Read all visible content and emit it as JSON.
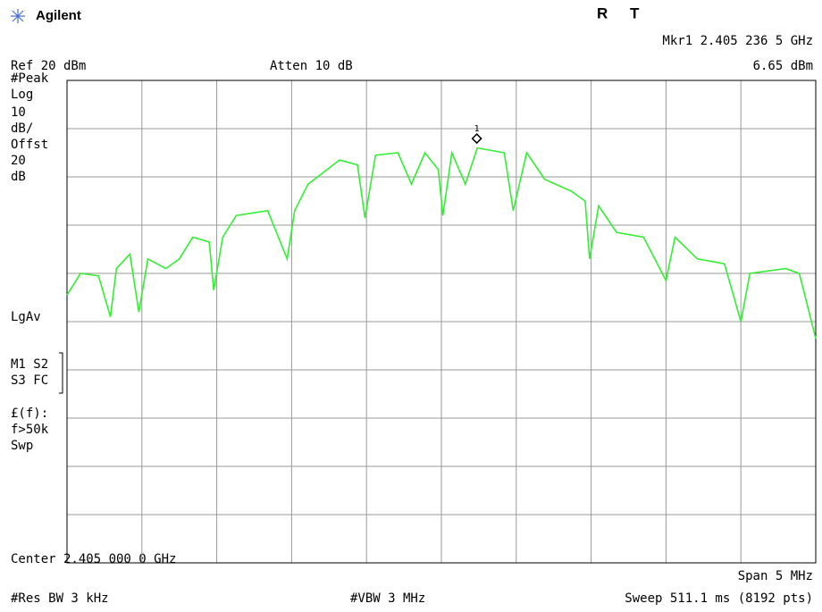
{
  "header": {
    "brand": "Agilent",
    "status_r": "R",
    "status_t": "T",
    "marker_readout": "Mkr1  2.405 236 5 GHz",
    "ref_level": "Ref 20 dBm",
    "attenuation": "Atten 10 dB",
    "marker_amplitude": "6.65 dBm"
  },
  "side_panel": [
    "#Peak",
    "Log",
    "10",
    "dB/",
    "Offst",
    "20",
    "dB",
    "LgAv",
    "M1  S2",
    "S3  FC",
    "£(f):",
    "f>50k",
    "Swp"
  ],
  "footer": {
    "center": "Center 2.405 000 0 GHz",
    "span": "Span 5 MHz",
    "rbw": "#Res BW 3 kHz",
    "vbw": "#VBW 3 MHz",
    "sweep": "Sweep 511.1 ms (8192 pts)"
  },
  "chart_data": {
    "type": "line",
    "color": "#33ee33",
    "grid": true,
    "xlim": [
      2.4025,
      2.4075
    ],
    "xticks": [
      2.4025,
      2.403,
      2.4035,
      2.404,
      2.4045,
      2.405,
      2.4055,
      2.406,
      2.4065,
      2.407,
      2.4075
    ],
    "ylim": [
      -80,
      20
    ],
    "yticks": [
      20,
      10,
      0,
      -10,
      -20,
      -30,
      -40,
      -50,
      -60,
      -70,
      -80
    ],
    "x": [
      2.4025,
      2.40259,
      2.40271,
      2.40279,
      2.40283,
      2.40292,
      2.40298,
      2.40304,
      2.40316,
      2.40325,
      2.40334,
      2.40345,
      2.40348,
      2.40354,
      2.40363,
      2.40384,
      2.40397,
      2.40402,
      2.40411,
      2.40432,
      2.40444,
      2.40449,
      2.40456,
      2.40471,
      2.4048,
      2.40489,
      2.40498,
      2.40501,
      2.40507,
      2.40516,
      2.40524,
      2.40542,
      2.40548,
      2.40557,
      2.40569,
      2.40587,
      2.40596,
      2.40599,
      2.40605,
      2.40617,
      2.40635,
      2.4065,
      2.40656,
      2.40671,
      2.40689,
      2.407,
      2.40706,
      2.4073,
      2.40739,
      2.4075
    ],
    "values": [
      -24.5,
      -20,
      -20.5,
      -29,
      -19,
      -16,
      -28,
      -17,
      -19,
      -17,
      -12.5,
      -13.5,
      -23.5,
      -12.5,
      -8,
      -7,
      -17,
      -7,
      -1.5,
      3.5,
      2.5,
      -8.5,
      4.5,
      5,
      -1.5,
      5,
      1.5,
      -8,
      5,
      -1.5,
      6,
      5,
      -7,
      5,
      -0.5,
      -3,
      -5,
      -17,
      -6,
      -11.5,
      -12.5,
      -21.5,
      -12.5,
      -17,
      -18,
      -30,
      -20,
      -19,
      -20,
      -33.5
    ],
    "marker": {
      "label": "1",
      "x": 2.4052365,
      "value": 6.65
    }
  }
}
